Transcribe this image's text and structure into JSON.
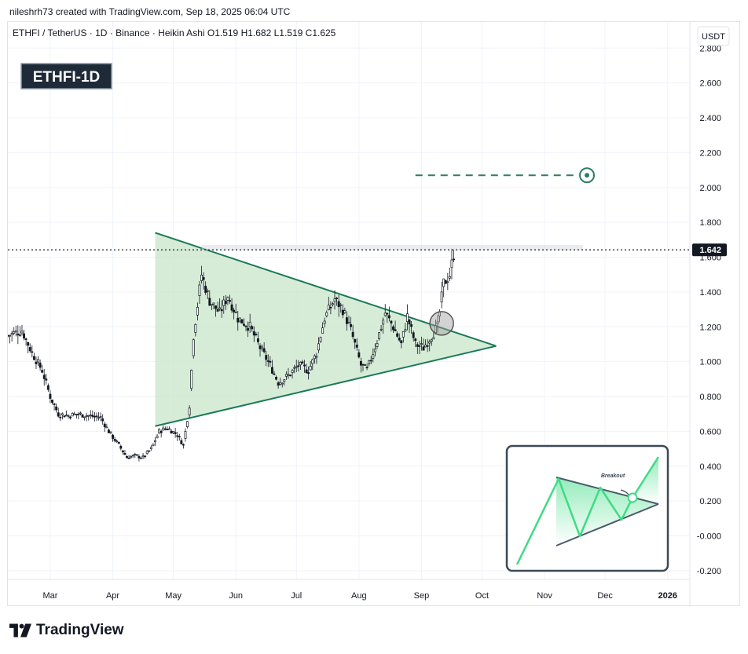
{
  "credit": "nileshrh73 created with TradingView.com, Sep 18, 2025 06:04 UTC",
  "logo_text": "TradingView",
  "colors": {
    "pattern_fill": "#c8e6c9",
    "pattern_line": "#1b7a57",
    "target": "#2e7d63",
    "candle": "#131722",
    "current_price_bg": "#131722",
    "label_bg": "#1e2a38",
    "inset_line": "#3ddc84",
    "inset_trend": "#4a5a6a"
  },
  "chart_data": {
    "type": "candlestick",
    "symbol_header": {
      "pair": "ETHFI / TetherUS · 1D · Binance · Heikin Ashi",
      "open": "O1.519",
      "high": "H1.682",
      "low": "L1.519",
      "close": "C1.625"
    },
    "label": "ETHFI-1D",
    "currency": "USDT",
    "current_price": "1.642",
    "ylim": [
      -0.25,
      2.95
    ],
    "y_ticks": [
      "2.800",
      "2.600",
      "2.400",
      "2.200",
      "2.000",
      "1.800",
      "1.600",
      "1.400",
      "1.200",
      "1.000",
      "0.800",
      "0.600",
      "0.400",
      "0.200",
      "-0.000",
      "-0.200"
    ],
    "x_ticks": [
      "Mar",
      "Apr",
      "May",
      "Jun",
      "Jul",
      "Aug",
      "Sep",
      "Oct",
      "Nov",
      "Dec",
      "2026"
    ],
    "x_tick_dates": [
      "2025-03-01",
      "2025-04-01",
      "2025-05-01",
      "2025-06-01",
      "2025-07-01",
      "2025-08-01",
      "2025-09-01",
      "2025-10-01",
      "2025-11-01",
      "2025-12-01",
      "2026-01-01"
    ],
    "x_range": [
      "2025-02-08",
      "2026-01-12"
    ],
    "price_path": [
      [
        "2025-02-08",
        1.15
      ],
      [
        "2025-02-15",
        1.18
      ],
      [
        "2025-02-20",
        1.05
      ],
      [
        "2025-02-25",
        0.95
      ],
      [
        "2025-03-01",
        0.8
      ],
      [
        "2025-03-05",
        0.7
      ],
      [
        "2025-03-10",
        0.69
      ],
      [
        "2025-03-15",
        0.7
      ],
      [
        "2025-03-20",
        0.69
      ],
      [
        "2025-03-26",
        0.68
      ],
      [
        "2025-03-30",
        0.6
      ],
      [
        "2025-04-04",
        0.52
      ],
      [
        "2025-04-08",
        0.45
      ],
      [
        "2025-04-12",
        0.46
      ],
      [
        "2025-04-16",
        0.45
      ],
      [
        "2025-04-20",
        0.5
      ],
      [
        "2025-04-24",
        0.6
      ],
      [
        "2025-04-28",
        0.62
      ],
      [
        "2025-05-03",
        0.58
      ],
      [
        "2025-05-06",
        0.52
      ],
      [
        "2025-05-09",
        0.75
      ],
      [
        "2025-05-11",
        1.15
      ],
      [
        "2025-05-15",
        1.5
      ],
      [
        "2025-05-19",
        1.35
      ],
      [
        "2025-05-24",
        1.28
      ],
      [
        "2025-05-28",
        1.38
      ],
      [
        "2025-06-02",
        1.25
      ],
      [
        "2025-06-08",
        1.2
      ],
      [
        "2025-06-13",
        1.08
      ],
      [
        "2025-06-18",
        0.98
      ],
      [
        "2025-06-22",
        0.88
      ],
      [
        "2025-06-27",
        0.92
      ],
      [
        "2025-07-02",
        0.98
      ],
      [
        "2025-07-07",
        0.95
      ],
      [
        "2025-07-11",
        1.05
      ],
      [
        "2025-07-15",
        1.25
      ],
      [
        "2025-07-20",
        1.36
      ],
      [
        "2025-07-24",
        1.3
      ],
      [
        "2025-07-28",
        1.18
      ],
      [
        "2025-08-02",
        0.98
      ],
      [
        "2025-08-05",
        0.95
      ],
      [
        "2025-08-10",
        1.12
      ],
      [
        "2025-08-14",
        1.28
      ],
      [
        "2025-08-18",
        1.2
      ],
      [
        "2025-08-22",
        1.1
      ],
      [
        "2025-08-25",
        1.26
      ],
      [
        "2025-08-29",
        1.1
      ],
      [
        "2025-09-02",
        1.08
      ],
      [
        "2025-09-06",
        1.15
      ],
      [
        "2025-09-09",
        1.2
      ],
      [
        "2025-09-12",
        1.45
      ],
      [
        "2025-09-15",
        1.5
      ],
      [
        "2025-09-17",
        1.62
      ]
    ],
    "pattern": {
      "type": "symmetrical triangle",
      "upper_line": [
        [
          "2025-04-22",
          1.74
        ],
        [
          "2025-10-08",
          1.09
        ]
      ],
      "lower_line": [
        [
          "2025-04-22",
          0.63
        ],
        [
          "2025-10-08",
          1.09
        ]
      ],
      "breakout_point": [
        "2025-09-11",
        1.22
      ]
    },
    "target": {
      "price": 2.07,
      "from": "2025-08-29",
      "to": "2025-11-22"
    },
    "resistance_band": {
      "price_low": 1.64,
      "price_high": 1.67,
      "from": "2025-05-15",
      "to": "2025-11-20"
    },
    "inset": {
      "label": "Breakout"
    }
  }
}
